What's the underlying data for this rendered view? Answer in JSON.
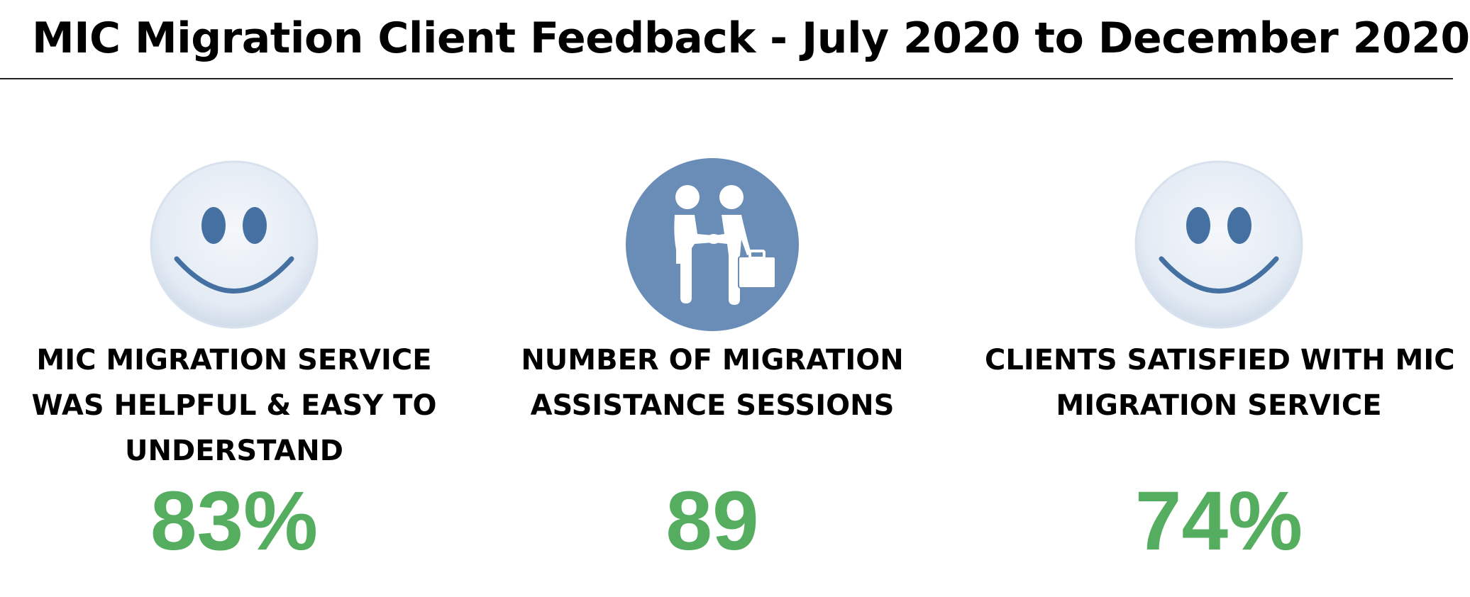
{
  "title": "MIC Migration Client Feedback - July 2020 to December 2020",
  "colors": {
    "stat_value": "#55ad5f",
    "icon_blue": "#6a8db8",
    "smiley_face": "#e4ebf4",
    "smiley_features": "#4470a2"
  },
  "stats": [
    {
      "icon": "smiley-face-icon",
      "label_lines": [
        "MIC MIGRATION SERVICE",
        "WAS HELPFUL & EASY TO",
        "UNDERSTAND"
      ],
      "value": "83%"
    },
    {
      "icon": "handshake-icon",
      "label_lines": [
        "NUMBER OF MIGRATION",
        "ASSISTANCE SESSIONS"
      ],
      "value": "89"
    },
    {
      "icon": "smiley-face-icon",
      "label_lines": [
        "CLIENTS SATISFIED WITH MIC",
        "MIGRATION SERVICE"
      ],
      "value": "74%"
    }
  ]
}
